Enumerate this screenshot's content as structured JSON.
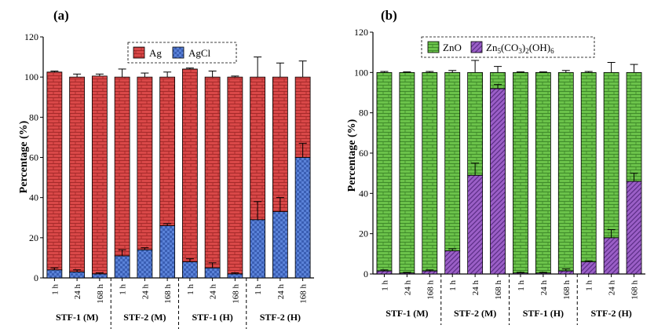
{
  "chart_data": [
    {
      "type": "bar",
      "stacked": true,
      "panel_label": "(a)",
      "ylabel": "Percentage (%)",
      "ylim": [
        0,
        120
      ],
      "yticks": [
        0,
        20,
        40,
        60,
        80,
        100,
        120
      ],
      "categories": [
        "1 h",
        "24 h",
        "168 h",
        "1 h",
        "24 h",
        "168 h",
        "1 h",
        "24 h",
        "168 h",
        "1 h",
        "24 h",
        "168 h"
      ],
      "groups": [
        "STF-1 (M)",
        "STF-2 (M)",
        "STF-1 (H)",
        "STF-2 (H)"
      ],
      "legend": {
        "placement": "top-right"
      },
      "series": [
        {
          "name": "AgCl",
          "label": "AgCl",
          "color": "#4a6fc4",
          "values": [
            4,
            3,
            2,
            11,
            14,
            26,
            8,
            5,
            2,
            29,
            33,
            60
          ],
          "errors": [
            1,
            1,
            0.5,
            3,
            1,
            1,
            1.5,
            2.5,
            0.5,
            9,
            7,
            7
          ]
        },
        {
          "name": "Ag",
          "label": "Ag",
          "color": "#d94848",
          "values": [
            98.5,
            97,
            98.5,
            89,
            86,
            74,
            96,
            95,
            98,
            71,
            67,
            40
          ],
          "errors": [
            0.5,
            1.5,
            1,
            4,
            2,
            2.5,
            0.5,
            3,
            0.5,
            10,
            7,
            8
          ]
        }
      ]
    },
    {
      "type": "bar",
      "stacked": true,
      "panel_label": "(b)",
      "ylabel": "Percentage (%)",
      "ylim": [
        0,
        120
      ],
      "yticks": [
        0,
        20,
        40,
        60,
        80,
        100,
        120
      ],
      "categories": [
        "1 h",
        "24 h",
        "168 h",
        "1 h",
        "24 h",
        "168 h",
        "1 h",
        "24 h",
        "168 h",
        "1 h",
        "24 h",
        "168 h"
      ],
      "groups": [
        "STF-1 (M)",
        "STF-2 (M)",
        "STF-1 (H)",
        "STF-2 (H)"
      ],
      "legend": {
        "placement": "top"
      },
      "series": [
        {
          "name": "Zn5(CO3)2(OH)6",
          "label": "Zn5(CO3)2(OH)6",
          "color": "#9b5fc7",
          "values": [
            1.5,
            0.5,
            1.5,
            11.5,
            49,
            92,
            0.5,
            0.5,
            1.5,
            6,
            18,
            46
          ],
          "errors": [
            0.5,
            0.3,
            0.5,
            1,
            6,
            2,
            0.3,
            0.3,
            1,
            0.5,
            4,
            4
          ]
        },
        {
          "name": "ZnO",
          "label": "ZnO",
          "color": "#6bc24a",
          "values": [
            98.5,
            99.5,
            98.5,
            88.5,
            51,
            8,
            99.5,
            99.5,
            98.5,
            94,
            82,
            54
          ],
          "errors": [
            0.5,
            0.3,
            0.5,
            1,
            6,
            3,
            0.3,
            0.3,
            1,
            0.5,
            5,
            4
          ]
        }
      ]
    }
  ]
}
